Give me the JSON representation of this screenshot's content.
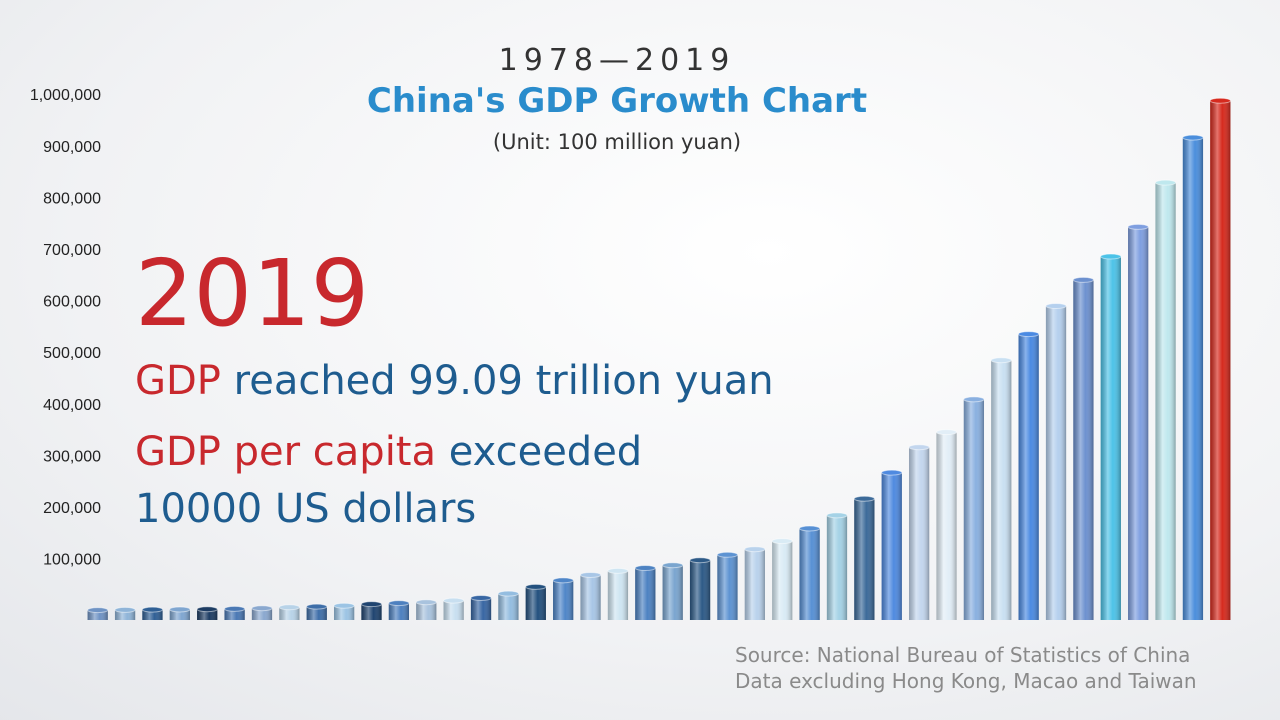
{
  "chart_data": {
    "type": "bar",
    "title": "1978—2019",
    "subtitle": "China's GDP Growth Chart",
    "unit": "(Unit: 100 million yuan)",
    "highlight_year": "2019",
    "annotations": [
      [
        {
          "text": "GDP",
          "color": "#c8282d"
        },
        {
          "text": " reached 99.09 trillion yuan",
          "color": "#1e5c8f"
        }
      ],
      [
        {
          "text": "GDP per capita",
          "color": "#c8282d"
        },
        {
          "text": " exceeded",
          "color": "#1e5c8f"
        }
      ],
      [
        {
          "text": "10000 US dollars",
          "color": "#1e5c8f"
        }
      ]
    ],
    "source": [
      "Source: National Bureau of Statistics of China",
      "Data excluding Hong Kong, Macao and Taiwan"
    ],
    "categories": [
      null,
      null,
      null,
      null,
      null,
      null,
      null,
      null,
      null,
      null,
      null,
      null,
      null,
      null,
      null,
      null,
      null,
      null,
      null,
      null,
      null,
      null,
      null,
      null,
      null,
      null,
      null,
      null,
      null,
      null,
      null,
      null,
      null,
      null,
      null,
      null,
      null,
      null,
      null,
      null,
      null,
      null
    ],
    "values": [
      3679,
      4101,
      4588,
      4936,
      5373,
      6021,
      7279,
      9099,
      10376,
      12175,
      15180,
      17180,
      18873,
      22006,
      27195,
      35673,
      48638,
      61340,
      71814,
      79715,
      85196,
      90564,
      100280,
      110863,
      121717,
      137422,
      161840,
      187319,
      219439,
      270092,
      319245,
      348518,
      412119,
      487940,
      538580,
      592963,
      643563,
      688858,
      746395,
      832036,
      919281,
      990865
    ],
    "colors": [
      "#6f93c4",
      "#8fb4d8",
      "#2f5f95",
      "#7fa6d0",
      "#1d3c63",
      "#4a78b4",
      "#8aa8cf",
      "#b8d3e8",
      "#3e6ea8",
      "#9cc4e4",
      "#1f4470",
      "#4d80bf",
      "#a9c3de",
      "#c8dff0",
      "#3866a3",
      "#94bde0",
      "#23507e",
      "#4f86c8",
      "#a8c6e6",
      "#cfe5f2",
      "#4d82c2",
      "#7aa5cf",
      "#2d5a87",
      "#5d93d2",
      "#b9d2ec",
      "#d9ebf5",
      "#5790d4",
      "#a5d2e6",
      "#3c6a99",
      "#4f8ae0",
      "#c3d6ee",
      "#e2eef7",
      "#8ab0e0",
      "#c9e0f2",
      "#4b8ae2",
      "#b5d0ee",
      "#6d91cf",
      "#4dc3e8",
      "#7f9fe0",
      "#bfe8ee",
      "#4b8edc",
      "#d62a1e"
    ],
    "ylim": [
      0,
      1000000
    ],
    "yticks": [
      {
        "value": 100000,
        "label": "100,000"
      },
      {
        "value": 200000,
        "label": "200,000"
      },
      {
        "value": 300000,
        "label": "300,000"
      },
      {
        "value": 400000,
        "label": "400,000"
      },
      {
        "value": 500000,
        "label": "500,000"
      },
      {
        "value": 600000,
        "label": "600,000"
      },
      {
        "value": 700000,
        "label": "700,000"
      },
      {
        "value": 800000,
        "label": "800,000"
      },
      {
        "value": 900000,
        "label": "900,000"
      },
      {
        "value": 1000000,
        "label": "1,000,000"
      }
    ],
    "grid": false
  }
}
